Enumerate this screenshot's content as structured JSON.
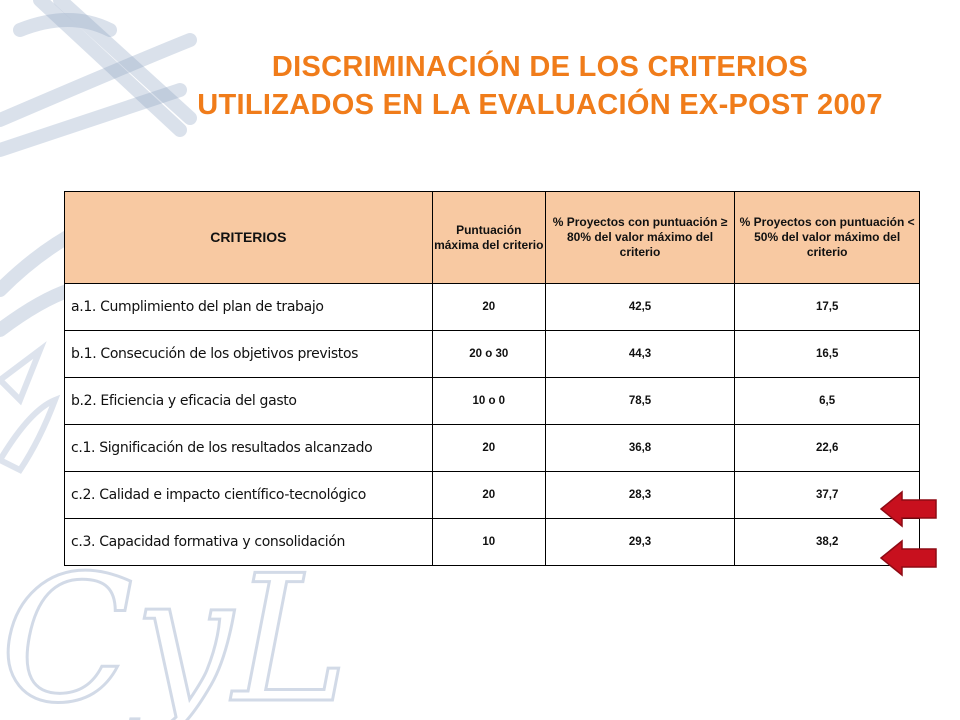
{
  "title": {
    "line1": "DISCRIMINACIÓN DE LOS CRITERIOS",
    "line2": "UTILIZADOS EN LA EVALUACIÓN EX-POST 2007"
  },
  "background_logo": {
    "text": "CyL",
    "color": "#8EA3C3"
  },
  "colors": {
    "title": "#F07C1A",
    "header_fill": "#F8C9A2",
    "arrow": "#C8101E"
  },
  "table": {
    "headers": [
      "CRITERIOS",
      "Puntuación máxima del criterio",
      "% Proyectos con puntuación  ≥ 80% del valor máximo del criterio",
      "% Proyectos con puntuación  < 50% del valor máximo del criterio"
    ],
    "rows": [
      [
        "a.1. Cumplimiento del plan de trabajo",
        "20",
        "42,5",
        "17,5"
      ],
      [
        "b.1. Consecución de los objetivos previstos",
        "20 o 30",
        "44,3",
        "16,5"
      ],
      [
        "b.2. Eficiencia y eficacia del gasto",
        "10 o 0",
        "78,5",
        "6,5"
      ],
      [
        "c.1. Significación de los resultados alcanzado",
        "20",
        "36,8",
        "22,6"
      ],
      [
        "c.2. Calidad e impacto científico-tecnológico",
        "20",
        "28,3",
        "37,7"
      ],
      [
        "c.3. Capacidad formativa y consolidación",
        "10",
        "29,3",
        "38,2"
      ]
    ]
  },
  "markers": [
    {
      "icon": "left-arrow-icon",
      "row": 5
    },
    {
      "icon": "left-arrow-icon",
      "row": 6
    }
  ]
}
